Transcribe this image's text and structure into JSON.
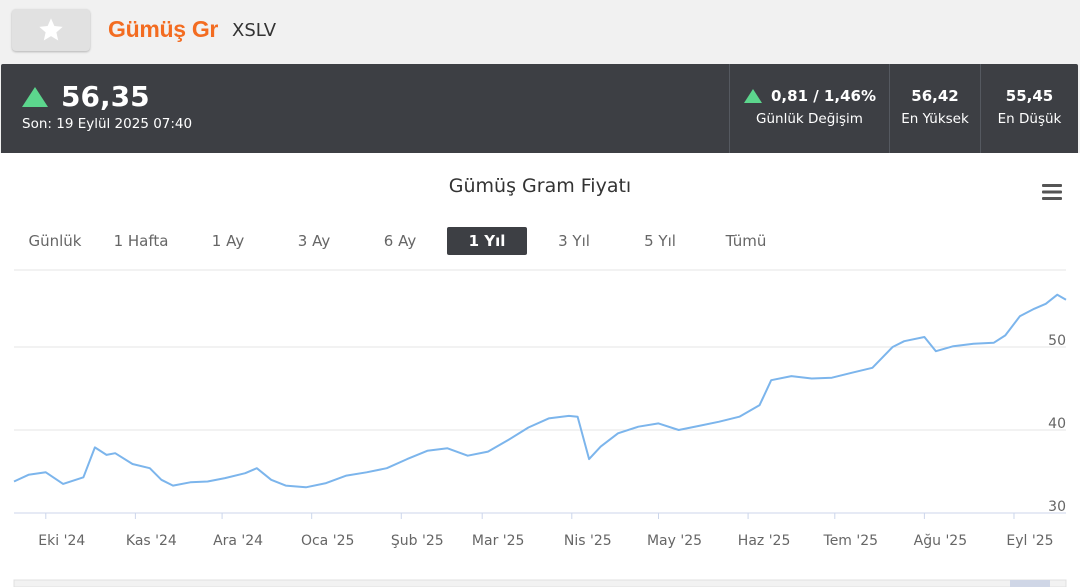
{
  "header": {
    "title": "Gümüş Gr",
    "symbol": "XSLV",
    "favorite_icon": "star-icon"
  },
  "price": {
    "direction": "up",
    "value": "56,35",
    "updated": "Son: 19 Eylül 2025 07:40",
    "up_color": "#5cd68d"
  },
  "stats": {
    "change": {
      "value": "0,81 / 1,46%",
      "label": "Günlük Değişim"
    },
    "high": {
      "value": "56,42",
      "label": "En Yüksek"
    },
    "low": {
      "value": "55,45",
      "label": "En Düşük"
    }
  },
  "chart_menu_icon": "hamburger-menu-icon",
  "ranges": [
    {
      "label": "Günlük",
      "active": false
    },
    {
      "label": "1 Hafta",
      "active": false
    },
    {
      "label": "1 Ay",
      "active": false
    },
    {
      "label": "3 Ay",
      "active": false
    },
    {
      "label": "6 Ay",
      "active": false
    },
    {
      "label": "1 Yıl",
      "active": true
    },
    {
      "label": "3 Yıl",
      "active": false
    },
    {
      "label": "5 Yıl",
      "active": false
    },
    {
      "label": "Tümü",
      "active": false
    }
  ],
  "chart_data": {
    "type": "line",
    "title": "Gümüş Gram Fiyatı",
    "xlabel": "",
    "ylabel": "",
    "line_color": "#7cb5ec",
    "grid": true,
    "x_tick_labels": [
      "Eki '24",
      "Kas '24",
      "Ara '24",
      "Oca '25",
      "Şub '25",
      "Mar '25",
      "Nis '25",
      "May '25",
      "Haz '25",
      "Tem '25",
      "Ağu '25",
      "Eyl '25"
    ],
    "y_ticks": [
      30,
      40,
      50
    ],
    "ylim": [
      30,
      61
    ],
    "x": [
      "2024-09-20",
      "2024-09-25",
      "2024-10-01",
      "2024-10-07",
      "2024-10-14",
      "2024-10-18",
      "2024-10-22",
      "2024-10-25",
      "2024-10-31",
      "2024-11-06",
      "2024-11-10",
      "2024-11-14",
      "2024-11-20",
      "2024-11-26",
      "2024-12-02",
      "2024-12-09",
      "2024-12-13",
      "2024-12-18",
      "2024-12-23",
      "2024-12-30",
      "2025-01-06",
      "2025-01-13",
      "2025-01-20",
      "2025-01-27",
      "2025-02-03",
      "2025-02-10",
      "2025-02-17",
      "2025-02-24",
      "2025-03-03",
      "2025-03-10",
      "2025-03-17",
      "2025-03-24",
      "2025-03-31",
      "2025-04-03",
      "2025-04-07",
      "2025-04-11",
      "2025-04-17",
      "2025-04-24",
      "2025-05-01",
      "2025-05-08",
      "2025-05-15",
      "2025-05-22",
      "2025-05-29",
      "2025-06-05",
      "2025-06-09",
      "2025-06-16",
      "2025-06-23",
      "2025-06-30",
      "2025-07-07",
      "2025-07-14",
      "2025-07-21",
      "2025-07-25",
      "2025-08-01",
      "2025-08-05",
      "2025-08-11",
      "2025-08-18",
      "2025-08-25",
      "2025-08-29",
      "2025-09-03",
      "2025-09-08",
      "2025-09-12",
      "2025-09-16",
      "2025-09-19"
    ],
    "values": [
      33.8,
      34.6,
      34.9,
      33.5,
      34.3,
      37.9,
      37.0,
      37.2,
      35.9,
      35.4,
      34.0,
      33.3,
      33.7,
      33.8,
      34.2,
      34.8,
      35.4,
      34.0,
      33.3,
      33.1,
      33.6,
      34.5,
      34.9,
      35.4,
      36.5,
      37.5,
      37.8,
      36.9,
      37.4,
      38.8,
      40.3,
      41.4,
      41.7,
      41.6,
      36.5,
      38.0,
      39.6,
      40.4,
      40.8,
      40.0,
      40.5,
      41.0,
      41.6,
      43.0,
      46.0,
      46.5,
      46.2,
      46.3,
      46.9,
      47.5,
      50.0,
      50.7,
      51.2,
      49.5,
      50.1,
      50.4,
      50.5,
      51.4,
      53.7,
      54.6,
      55.2,
      56.3,
      55.7
    ]
  }
}
